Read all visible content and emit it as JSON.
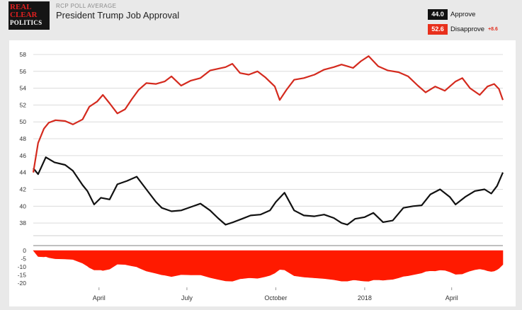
{
  "header": {
    "logo": {
      "line1": "REAL",
      "line2": "CLEAR",
      "line3": "POLITICS"
    },
    "kicker": "RCP POLL AVERAGE",
    "title": "President Trump Job Approval"
  },
  "legend": [
    {
      "value": "44.0",
      "label": "Approve",
      "color": "#111111",
      "diff": ""
    },
    {
      "value": "52.6",
      "label": "Disapprove",
      "color": "#e8301c",
      "diff": "+8.6"
    }
  ],
  "chart_data": {
    "type": "line",
    "x_ticks": [
      "April",
      "July",
      "October",
      "2018",
      "April"
    ],
    "y_ticks": [
      "58",
      "56",
      "54",
      "52",
      "50",
      "48",
      "46",
      "44",
      "42",
      "40",
      "38"
    ],
    "ylim": [
      36.5,
      58.5
    ],
    "grid": true,
    "x_start": "2017-01-23",
    "x_end": "2018-05-24",
    "x_tick_dates": [
      "2017-04-01",
      "2017-07-01",
      "2017-10-01",
      "2018-01-01",
      "2018-04-01"
    ],
    "series": [
      {
        "name": "Approve",
        "color": "#111111",
        "x": [
          "2017-01-23",
          "2017-01-28",
          "2017-02-05",
          "2017-02-14",
          "2017-02-25",
          "2017-03-05",
          "2017-03-15",
          "2017-03-20",
          "2017-03-27",
          "2017-04-03",
          "2017-04-12",
          "2017-04-20",
          "2017-04-30",
          "2017-05-10",
          "2017-05-20",
          "2017-05-30",
          "2017-06-05",
          "2017-06-15",
          "2017-06-25",
          "2017-07-05",
          "2017-07-15",
          "2017-07-25",
          "2017-08-02",
          "2017-08-10",
          "2017-08-18",
          "2017-08-27",
          "2017-09-05",
          "2017-09-15",
          "2017-09-25",
          "2017-10-01",
          "2017-10-10",
          "2017-10-20",
          "2017-10-30",
          "2017-11-10",
          "2017-11-20",
          "2017-11-30",
          "2017-12-08",
          "2017-12-14",
          "2017-12-22",
          "2018-01-01",
          "2018-01-10",
          "2018-01-20",
          "2018-01-30",
          "2018-02-10",
          "2018-02-20",
          "2018-03-01",
          "2018-03-10",
          "2018-03-20",
          "2018-03-30",
          "2018-04-05",
          "2018-04-15",
          "2018-04-25",
          "2018-05-05",
          "2018-05-12",
          "2018-05-18",
          "2018-05-24"
        ],
        "y": [
          44.5,
          43.8,
          45.8,
          45.2,
          44.9,
          44.2,
          42.5,
          41.8,
          40.2,
          41.0,
          40.8,
          42.6,
          43.0,
          43.5,
          42.0,
          40.5,
          39.8,
          39.4,
          39.5,
          39.9,
          40.3,
          39.5,
          38.6,
          37.8,
          38.1,
          38.5,
          38.9,
          39.0,
          39.5,
          40.5,
          41.6,
          39.5,
          38.9,
          38.8,
          39.0,
          38.6,
          38.0,
          37.8,
          38.5,
          38.7,
          39.2,
          38.1,
          38.3,
          39.8,
          40.0,
          40.1,
          41.4,
          42.0,
          41.1,
          40.2,
          41.1,
          41.8,
          42.0,
          41.5,
          42.4,
          44.0
        ]
      },
      {
        "name": "Disapprove",
        "color": "#d42a1e",
        "x": [
          "2017-01-23",
          "2017-01-28",
          "2017-02-03",
          "2017-02-08",
          "2017-02-15",
          "2017-02-25",
          "2017-03-05",
          "2017-03-15",
          "2017-03-22",
          "2017-03-30",
          "2017-04-05",
          "2017-04-12",
          "2017-04-20",
          "2017-04-28",
          "2017-05-05",
          "2017-05-12",
          "2017-05-20",
          "2017-05-30",
          "2017-06-08",
          "2017-06-15",
          "2017-06-25",
          "2017-07-05",
          "2017-07-15",
          "2017-07-25",
          "2017-08-02",
          "2017-08-10",
          "2017-08-17",
          "2017-08-25",
          "2017-09-03",
          "2017-09-12",
          "2017-09-20",
          "2017-09-30",
          "2017-10-05",
          "2017-10-12",
          "2017-10-20",
          "2017-10-30",
          "2017-11-10",
          "2017-11-20",
          "2017-11-30",
          "2017-12-08",
          "2017-12-14",
          "2017-12-20",
          "2017-12-28",
          "2018-01-05",
          "2018-01-15",
          "2018-01-25",
          "2018-02-05",
          "2018-02-15",
          "2018-02-25",
          "2018-03-05",
          "2018-03-15",
          "2018-03-25",
          "2018-04-05",
          "2018-04-12",
          "2018-04-20",
          "2018-04-30",
          "2018-05-08",
          "2018-05-15",
          "2018-05-20",
          "2018-05-24"
        ],
        "y": [
          44.0,
          47.5,
          49.2,
          49.9,
          50.2,
          50.1,
          49.7,
          50.3,
          51.8,
          52.4,
          53.2,
          52.2,
          51.0,
          51.5,
          52.7,
          53.8,
          54.6,
          54.5,
          54.8,
          55.4,
          54.3,
          54.9,
          55.2,
          56.1,
          56.3,
          56.5,
          56.9,
          55.8,
          55.6,
          56.0,
          55.3,
          54.2,
          52.6,
          53.8,
          55.0,
          55.2,
          55.6,
          56.2,
          56.5,
          56.8,
          56.6,
          56.4,
          57.2,
          57.8,
          56.6,
          56.1,
          55.9,
          55.4,
          54.3,
          53.5,
          54.2,
          53.7,
          54.8,
          55.2,
          54.0,
          53.2,
          54.2,
          54.5,
          53.9,
          52.6
        ]
      }
    ],
    "net": {
      "name": "Net",
      "color": "#ff1a00",
      "y_ticks": [
        "0",
        "-5",
        "-10",
        "-15",
        "-20"
      ],
      "ylim": [
        -20,
        0
      ]
    }
  }
}
